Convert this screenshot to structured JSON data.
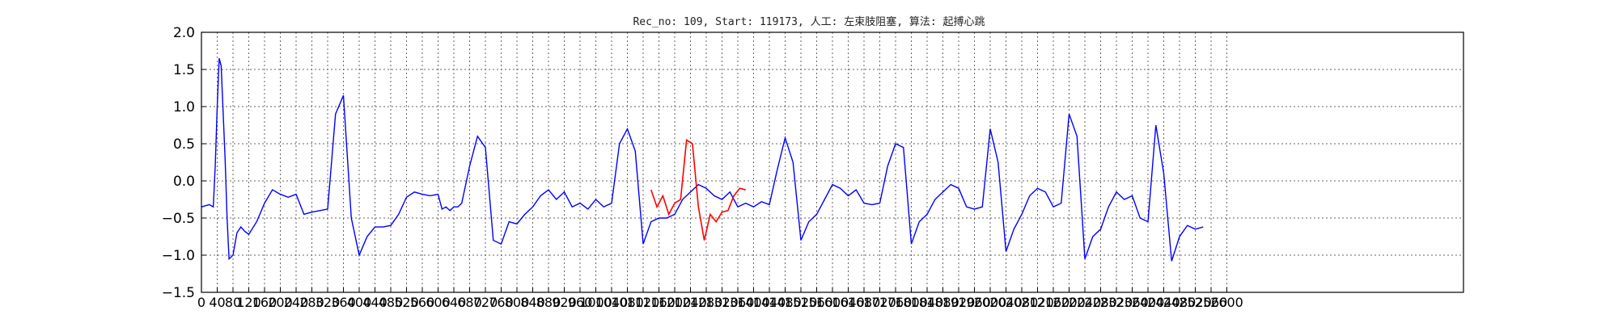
{
  "chart_data": {
    "type": "line",
    "title": "Rec_no: 109, Start: 119173, 人工: 左束肢阻塞, 算法: 起搏心跳",
    "xlabel": "",
    "ylabel": "",
    "xlim": [
      0,
      3200
    ],
    "ylim": [
      -1.5,
      2.0
    ],
    "grid": true,
    "y_ticks": [
      "−1.5",
      "−1.0",
      "−0.5",
      "0.0",
      "0.5",
      "1.0",
      "1.5",
      "2.0"
    ],
    "y_tick_values": [
      -1.5,
      -1.0,
      -0.5,
      0.0,
      0.5,
      1.0,
      1.5,
      2.0
    ],
    "x_tick_step": 40,
    "x_tick_last": 2600,
    "x_tick_labels_visible": [
      "0",
      "4080",
      "120",
      "1602024028",
      "32",
      "0",
      "36",
      "0",
      "40",
      "0",
      "44",
      "0",
      "48",
      "0",
      "52",
      "0",
      "56",
      "0",
      "60",
      "0",
      "64",
      "0",
      "68",
      "0",
      "72",
      "0",
      "76",
      "0",
      "80",
      "0",
      "84",
      "0",
      "88",
      "0",
      "92",
      "0",
      "96",
      "0",
      "100",
      "0",
      "104",
      "0",
      "108",
      "0",
      "112",
      "0",
      "116",
      "0",
      "120",
      "0",
      "124",
      "0",
      "128",
      "0",
      "132",
      "0",
      "136",
      "0",
      "140",
      "0",
      "144",
      "0",
      "148",
      "0",
      "152",
      "0",
      "156",
      "0",
      "160",
      "0",
      "164",
      "0",
      "168",
      "0",
      "172",
      "0",
      "176",
      "0",
      "180",
      "0",
      "184",
      "0",
      "188",
      "0",
      "192",
      "0",
      "196",
      "0",
      "200",
      "0",
      "204",
      "0",
      "208",
      "0",
      "212",
      "0",
      "216",
      "0",
      "220",
      "0",
      "224",
      "0",
      "228",
      "0",
      "232",
      "0",
      "236",
      "0",
      "240",
      "0",
      "244",
      "0",
      "248",
      "0",
      "252",
      "0",
      "256",
      "0",
      "2600"
    ],
    "colors": {
      "normal": "#0000ff",
      "highlight": "#ff0000"
    },
    "series": [
      {
        "color": "normal",
        "x": [
          0,
          20,
          30,
          35,
          40,
          45,
          50,
          60,
          65,
          70,
          80,
          90,
          100,
          110,
          120,
          140,
          160,
          180,
          200,
          220,
          240,
          260,
          280,
          300,
          320,
          340,
          360,
          380,
          400,
          420,
          440,
          460,
          480,
          500,
          520,
          540,
          560,
          580,
          600,
          610,
          620,
          630,
          640,
          650,
          660,
          680,
          700,
          720,
          740,
          760,
          780,
          800,
          820,
          840,
          860,
          880,
          900,
          920,
          940,
          960,
          980,
          1000,
          1020,
          1040,
          1060,
          1080,
          1100,
          1120,
          1140,
          1160,
          1180,
          1200,
          1220,
          1240,
          1260,
          1280,
          1300,
          1320,
          1340,
          1360,
          1380,
          1400
        ],
        "y": [
          -0.35,
          -0.32,
          -0.35,
          0.2,
          1.0,
          1.65,
          1.55,
          0.3,
          -0.5,
          -1.05,
          -1.0,
          -0.7,
          -0.62,
          -0.68,
          -0.72,
          -0.55,
          -0.3,
          -0.12,
          -0.18,
          -0.22,
          -0.18,
          -0.45,
          -0.42,
          -0.4,
          -0.38,
          0.9,
          1.15,
          -0.5,
          -1.0,
          -0.75,
          -0.62,
          -0.62,
          -0.6,
          -0.45,
          -0.22,
          -0.15,
          -0.18,
          -0.2,
          -0.18,
          -0.38,
          -0.35,
          -0.4,
          -0.35,
          -0.35,
          -0.3,
          0.2,
          0.6,
          0.45,
          -0.8,
          -0.85,
          -0.55,
          -0.58,
          -0.45,
          -0.35,
          -0.2,
          -0.12,
          -0.25,
          -0.15,
          -0.35,
          -0.3,
          -0.38,
          -0.25,
          -0.35,
          -0.3,
          0.5,
          0.7,
          0.4,
          -0.85,
          -0.55,
          -0.5,
          -0.5,
          -0.45,
          -0.25,
          -0.15,
          -0.05,
          -0.1,
          -0.2,
          -0.25,
          -0.15,
          -0.35,
          -0.3,
          -0.35
        ]
      }
    ]
  }
}
